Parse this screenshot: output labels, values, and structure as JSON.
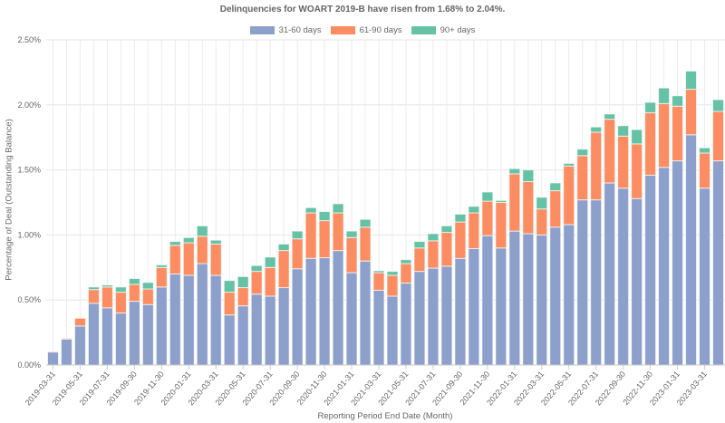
{
  "chart_data": {
    "type": "bar",
    "stacked": true,
    "title": "Delinquencies for WOART 2019-B have risen from 1.68% to 2.04%.",
    "xlabel": "Reporting Period End Date (Month)",
    "ylabel": "Percentage of Deal (Outstanding Balance)",
    "ylim": [
      0,
      2.5
    ],
    "y_ticks": [
      "0.00%",
      "0.50%",
      "1.00%",
      "1.50%",
      "2.00%",
      "2.50%"
    ],
    "grid": true,
    "legend_position": "top",
    "categories": [
      "2019-03-31",
      "2019-04-30",
      "2019-05-31",
      "2019-06-30",
      "2019-07-31",
      "2019-08-31",
      "2019-09-30",
      "2019-10-31",
      "2019-11-30",
      "2019-12-31",
      "2020-01-31",
      "2020-02-29",
      "2020-03-31",
      "2020-04-30",
      "2020-05-31",
      "2020-06-30",
      "2020-07-31",
      "2020-08-31",
      "2020-09-30",
      "2020-10-31",
      "2020-11-30",
      "2020-12-31",
      "2021-01-31",
      "2021-02-28",
      "2021-03-31",
      "2021-04-30",
      "2021-05-31",
      "2021-06-30",
      "2021-07-31",
      "2021-08-31",
      "2021-09-30",
      "2021-10-31",
      "2021-11-30",
      "2021-12-31",
      "2022-01-31",
      "2022-02-28",
      "2022-03-31",
      "2022-04-30",
      "2022-05-31",
      "2022-06-30",
      "2022-07-31",
      "2022-08-31",
      "2022-09-30",
      "2022-10-31",
      "2022-11-30",
      "2022-12-31",
      "2023-01-31",
      "2023-02-28",
      "2023-03-31",
      "2023-04-30"
    ],
    "series": [
      {
        "name": "31-60 days",
        "color": "#8da0cb",
        "values": [
          0.1,
          0.2,
          0.3,
          0.475,
          0.44,
          0.4,
          0.49,
          0.465,
          0.6,
          0.7,
          0.69,
          0.78,
          0.69,
          0.385,
          0.455,
          0.545,
          0.53,
          0.595,
          0.74,
          0.82,
          0.825,
          0.88,
          0.71,
          0.8,
          0.575,
          0.53,
          0.63,
          0.72,
          0.745,
          0.76,
          0.82,
          0.895,
          0.995,
          0.9,
          1.03,
          1.01,
          1.0,
          1.06,
          1.08,
          1.27,
          1.27,
          1.4,
          1.36,
          1.28,
          1.46,
          1.52,
          1.57,
          1.77,
          1.36,
          1.57
        ]
      },
      {
        "name": "61-90 days",
        "color": "#fc8d62",
        "values": [
          0.005,
          0.005,
          0.06,
          0.105,
          0.16,
          0.16,
          0.13,
          0.12,
          0.15,
          0.22,
          0.25,
          0.21,
          0.24,
          0.175,
          0.14,
          0.175,
          0.22,
          0.285,
          0.23,
          0.35,
          0.285,
          0.29,
          0.27,
          0.26,
          0.135,
          0.16,
          0.15,
          0.18,
          0.21,
          0.26,
          0.28,
          0.275,
          0.265,
          0.35,
          0.44,
          0.4,
          0.2,
          0.28,
          0.45,
          0.34,
          0.52,
          0.49,
          0.4,
          0.42,
          0.48,
          0.49,
          0.42,
          0.35,
          0.27,
          0.38
        ]
      },
      {
        "name": "90+ days",
        "color": "#66c2a5",
        "values": [
          0,
          0,
          0,
          0.02,
          0.015,
          0.04,
          0.045,
          0.05,
          0.02,
          0.03,
          0.04,
          0.08,
          0.03,
          0.09,
          0.085,
          0.045,
          0.08,
          0.05,
          0.06,
          0.04,
          0.07,
          0.07,
          0.05,
          0.06,
          0.015,
          0.03,
          0.03,
          0.05,
          0.055,
          0.05,
          0.06,
          0.05,
          0.07,
          0.015,
          0.04,
          0.09,
          0.09,
          0.06,
          0.02,
          0.05,
          0.04,
          0.04,
          0.08,
          0.11,
          0.08,
          0.12,
          0.08,
          0.14,
          0.04,
          0.09
        ]
      }
    ]
  }
}
